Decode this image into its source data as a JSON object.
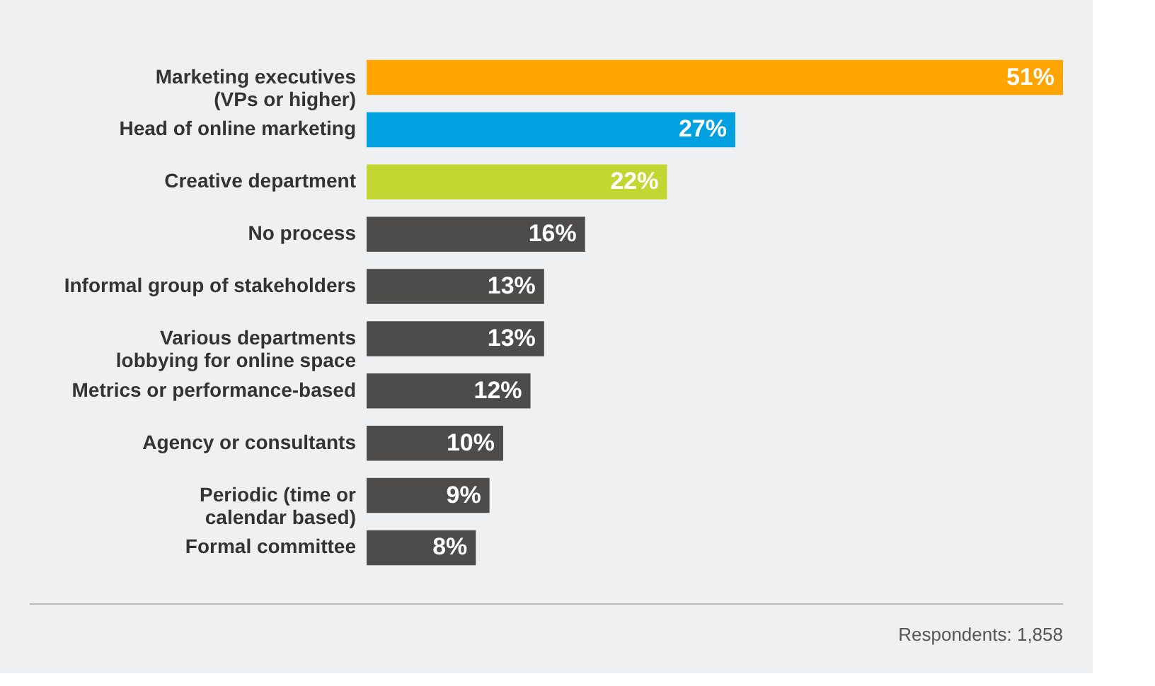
{
  "chart_data": {
    "type": "bar",
    "orientation": "horizontal",
    "categories": [
      "Marketing executives\n(VPs or higher)",
      "Head of online marketing",
      "Creative department",
      "No process",
      "Informal group of stakeholders",
      "Various departments\nlobbying for online space",
      "Metrics or performance-based",
      "Agency or consultants",
      "Periodic (time or\ncalendar based)",
      "Formal committee"
    ],
    "values": [
      51,
      27,
      22,
      16,
      13,
      13,
      12,
      10,
      9,
      8
    ],
    "value_labels": [
      "51%",
      "27%",
      "22%",
      "16%",
      "13%",
      "13%",
      "12%",
      "10%",
      "9%",
      "8%"
    ],
    "colors": [
      "#ffa400",
      "#00a0e1",
      "#c2d731",
      "#4e4b4b",
      "#4e4b4b",
      "#4e4b4b",
      "#4e4b4b",
      "#4e4b4b",
      "#4e4b4b",
      "#4e4b4b"
    ],
    "annotations": [
      "Respondents: 1,858"
    ]
  }
}
